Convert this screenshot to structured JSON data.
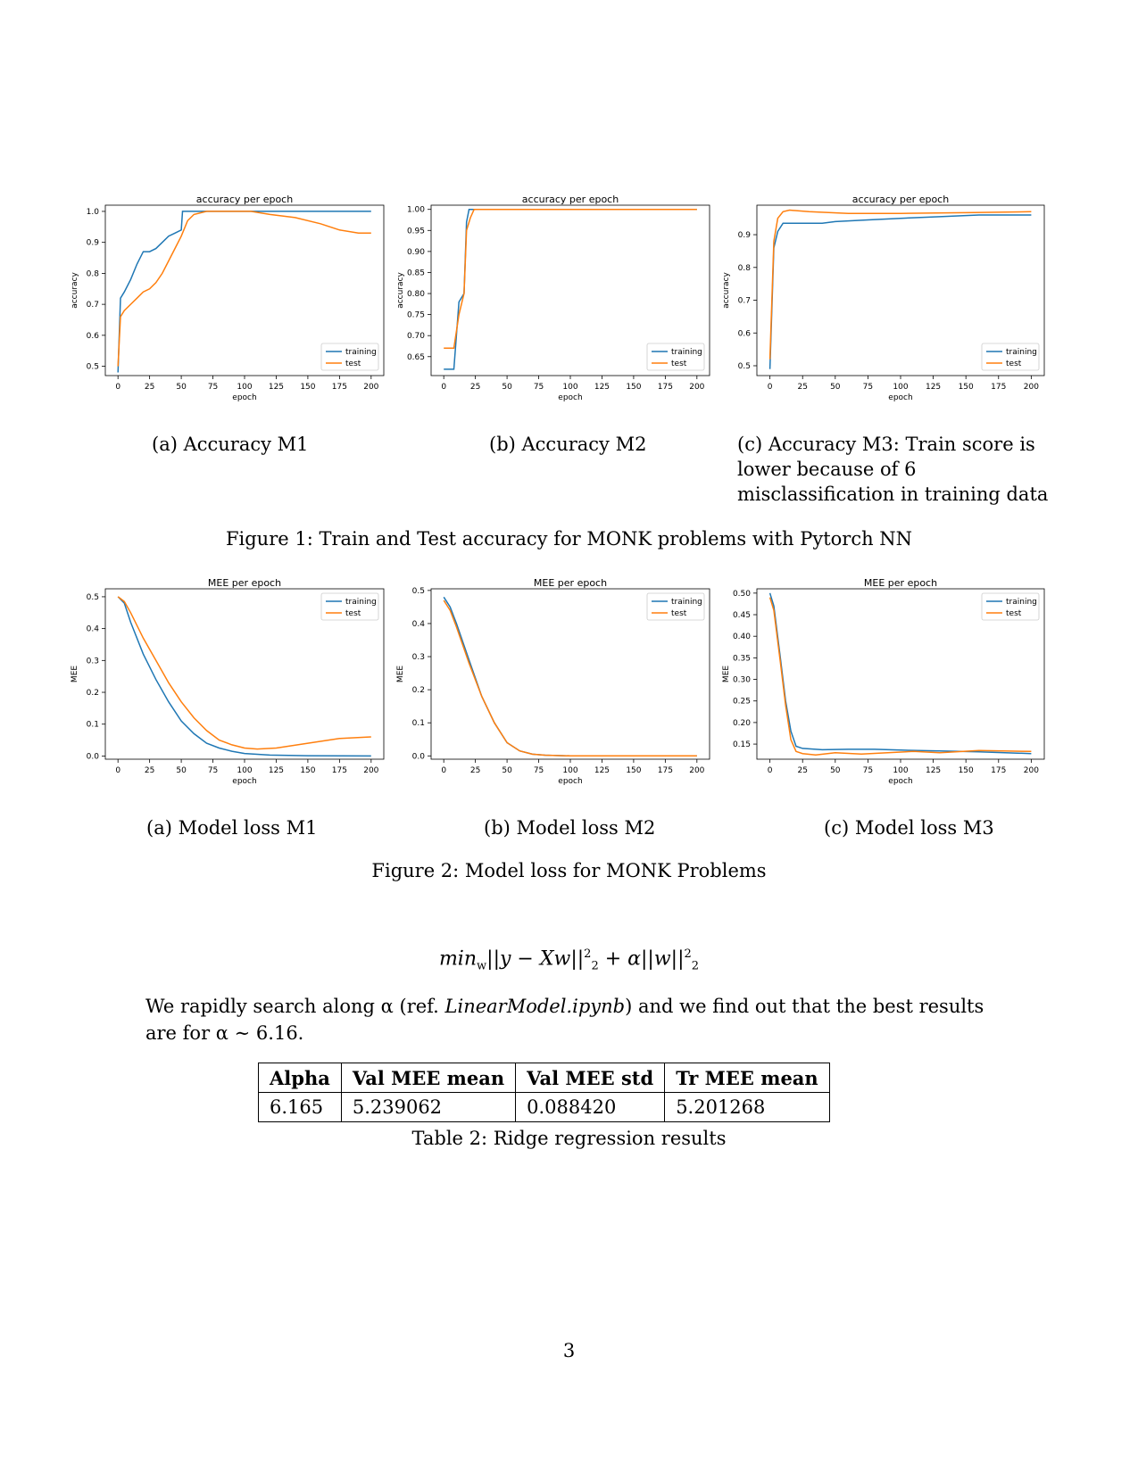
{
  "figure1": {
    "caption": "Figure 1: Train and Test accuracy for MONK problems with Pytorch NN",
    "subfigures": [
      {
        "label": "(a) Accuracy M1"
      },
      {
        "label": "(b) Accuracy M2"
      },
      {
        "label": "(c) Accuracy M3: Train score is lower because of 6 misclassification in training data"
      }
    ]
  },
  "figure2": {
    "caption": "Figure 2: Model loss for MONK Problems",
    "subfigures": [
      {
        "label": "(a) Model loss M1"
      },
      {
        "label": "(b) Model loss M2"
      },
      {
        "label": "(c) Model loss M3"
      }
    ]
  },
  "formula": {
    "text": "min",
    "sub_w": "w",
    "mid": "||y − Xw||",
    "sq": "2",
    "plus": " + α||w||"
  },
  "paragraph": {
    "part1": "We rapidly search along α (ref. ",
    "ref": "LinearModel.ipynb",
    "part2": ") and we find out that the best results are for α ∼ 6.16."
  },
  "table": {
    "headers": [
      "Alpha",
      "Val MEE mean",
      "Val MEE std",
      "Tr MEE mean"
    ],
    "row": [
      "6.165",
      "5.239062",
      "0.088420",
      "5.201268"
    ],
    "caption": "Table 2: Ridge regression results"
  },
  "page_number": "3",
  "colors": {
    "training": "#1f77b4",
    "test": "#ff7f0e"
  },
  "chart_data": [
    {
      "type": "line",
      "title": "accuracy per epoch",
      "xlabel": "epoch",
      "ylabel": "accuracy",
      "xlim": [
        -10,
        210
      ],
      "ylim": [
        0.47,
        1.02
      ],
      "xticks": [
        0,
        25,
        50,
        75,
        100,
        125,
        150,
        175,
        200
      ],
      "yticks": [
        0.5,
        0.6,
        0.7,
        0.8,
        0.9,
        1.0
      ],
      "ytick_labels": [
        "0.5",
        "0.6",
        "0.7",
        "0.8",
        "0.9",
        "1.0"
      ],
      "legend": "lower-right",
      "series": [
        {
          "name": "training",
          "points": [
            [
              0,
              0.48
            ],
            [
              2,
              0.72
            ],
            [
              5,
              0.74
            ],
            [
              10,
              0.78
            ],
            [
              15,
              0.83
            ],
            [
              20,
              0.87
            ],
            [
              25,
              0.87
            ],
            [
              30,
              0.88
            ],
            [
              35,
              0.9
            ],
            [
              40,
              0.92
            ],
            [
              45,
              0.93
            ],
            [
              50,
              0.94
            ],
            [
              51,
              1.0
            ],
            [
              200,
              1.0
            ]
          ]
        },
        {
          "name": "test",
          "points": [
            [
              0,
              0.5
            ],
            [
              2,
              0.66
            ],
            [
              5,
              0.68
            ],
            [
              10,
              0.7
            ],
            [
              15,
              0.72
            ],
            [
              20,
              0.74
            ],
            [
              25,
              0.75
            ],
            [
              30,
              0.77
            ],
            [
              35,
              0.8
            ],
            [
              40,
              0.84
            ],
            [
              45,
              0.88
            ],
            [
              50,
              0.92
            ],
            [
              55,
              0.97
            ],
            [
              60,
              0.99
            ],
            [
              70,
              1.0
            ],
            [
              105,
              1.0
            ],
            [
              120,
              0.99
            ],
            [
              140,
              0.98
            ],
            [
              160,
              0.96
            ],
            [
              175,
              0.94
            ],
            [
              190,
              0.93
            ],
            [
              200,
              0.93
            ]
          ]
        }
      ]
    },
    {
      "type": "line",
      "title": "accuracy per epoch",
      "xlabel": "epoch",
      "ylabel": "accuracy",
      "xlim": [
        -10,
        210
      ],
      "ylim": [
        0.605,
        1.01
      ],
      "xticks": [
        0,
        25,
        50,
        75,
        100,
        125,
        150,
        175,
        200
      ],
      "yticks": [
        0.65,
        0.7,
        0.75,
        0.8,
        0.85,
        0.9,
        0.95,
        1.0
      ],
      "ytick_labels": [
        "0.65",
        "0.70",
        "0.75",
        "0.80",
        "0.85",
        "0.90",
        "0.95",
        "1.00"
      ],
      "legend": "lower-right",
      "series": [
        {
          "name": "training",
          "points": [
            [
              0,
              0.62
            ],
            [
              8,
              0.62
            ],
            [
              12,
              0.78
            ],
            [
              16,
              0.8
            ],
            [
              18,
              0.97
            ],
            [
              20,
              1.0
            ],
            [
              200,
              1.0
            ]
          ]
        },
        {
          "name": "test",
          "points": [
            [
              0,
              0.67
            ],
            [
              8,
              0.67
            ],
            [
              12,
              0.75
            ],
            [
              16,
              0.8
            ],
            [
              18,
              0.95
            ],
            [
              21,
              0.98
            ],
            [
              24,
              1.0
            ],
            [
              200,
              1.0
            ]
          ]
        }
      ]
    },
    {
      "type": "line",
      "title": "accuracy per epoch",
      "xlabel": "epoch",
      "ylabel": "accuracy",
      "xlim": [
        -10,
        210
      ],
      "ylim": [
        0.47,
        0.99
      ],
      "xticks": [
        0,
        25,
        50,
        75,
        100,
        125,
        150,
        175,
        200
      ],
      "yticks": [
        0.5,
        0.6,
        0.7,
        0.8,
        0.9
      ],
      "ytick_labels": [
        "0.5",
        "0.6",
        "0.7",
        "0.8",
        "0.9"
      ],
      "legend": "lower-right",
      "series": [
        {
          "name": "training",
          "points": [
            [
              0,
              0.49
            ],
            [
              3,
              0.86
            ],
            [
              6,
              0.91
            ],
            [
              10,
              0.935
            ],
            [
              15,
              0.935
            ],
            [
              40,
              0.935
            ],
            [
              50,
              0.94
            ],
            [
              75,
              0.945
            ],
            [
              100,
              0.95
            ],
            [
              130,
              0.955
            ],
            [
              160,
              0.96
            ],
            [
              200,
              0.96
            ]
          ]
        },
        {
          "name": "test",
          "points": [
            [
              0,
              0.52
            ],
            [
              3,
              0.88
            ],
            [
              6,
              0.95
            ],
            [
              10,
              0.97
            ],
            [
              15,
              0.975
            ],
            [
              30,
              0.97
            ],
            [
              60,
              0.965
            ],
            [
              100,
              0.965
            ],
            [
              150,
              0.967
            ],
            [
              200,
              0.97
            ]
          ]
        }
      ]
    },
    {
      "type": "line",
      "title": "MEE per epoch",
      "xlabel": "epoch",
      "ylabel": "MEE",
      "xlim": [
        -10,
        210
      ],
      "ylim": [
        -0.01,
        0.525
      ],
      "xticks": [
        0,
        25,
        50,
        75,
        100,
        125,
        150,
        175,
        200
      ],
      "yticks": [
        0.0,
        0.1,
        0.2,
        0.3,
        0.4,
        0.5
      ],
      "ytick_labels": [
        "0.0",
        "0.1",
        "0.2",
        "0.3",
        "0.4",
        "0.5"
      ],
      "legend": "upper-right",
      "series": [
        {
          "name": "training",
          "points": [
            [
              0,
              0.5
            ],
            [
              5,
              0.48
            ],
            [
              10,
              0.42
            ],
            [
              20,
              0.32
            ],
            [
              30,
              0.24
            ],
            [
              40,
              0.17
            ],
            [
              50,
              0.11
            ],
            [
              60,
              0.07
            ],
            [
              70,
              0.04
            ],
            [
              80,
              0.025
            ],
            [
              90,
              0.015
            ],
            [
              100,
              0.008
            ],
            [
              120,
              0.003
            ],
            [
              150,
              0.001
            ],
            [
              200,
              0.0
            ]
          ]
        },
        {
          "name": "test",
          "points": [
            [
              0,
              0.5
            ],
            [
              5,
              0.485
            ],
            [
              10,
              0.45
            ],
            [
              20,
              0.37
            ],
            [
              30,
              0.3
            ],
            [
              40,
              0.23
            ],
            [
              50,
              0.17
            ],
            [
              60,
              0.12
            ],
            [
              70,
              0.08
            ],
            [
              80,
              0.05
            ],
            [
              90,
              0.035
            ],
            [
              100,
              0.025
            ],
            [
              110,
              0.022
            ],
            [
              125,
              0.025
            ],
            [
              150,
              0.04
            ],
            [
              175,
              0.055
            ],
            [
              200,
              0.06
            ]
          ]
        }
      ]
    },
    {
      "type": "line",
      "title": "MEE per epoch",
      "xlabel": "epoch",
      "ylabel": "MEE",
      "xlim": [
        -10,
        210
      ],
      "ylim": [
        -0.01,
        0.505
      ],
      "xticks": [
        0,
        25,
        50,
        75,
        100,
        125,
        150,
        175,
        200
      ],
      "yticks": [
        0.0,
        0.1,
        0.2,
        0.3,
        0.4,
        0.5
      ],
      "ytick_labels": [
        "0.0",
        "0.1",
        "0.2",
        "0.3",
        "0.4",
        "0.5"
      ],
      "legend": "upper-right",
      "series": [
        {
          "name": "training",
          "points": [
            [
              0,
              0.48
            ],
            [
              5,
              0.45
            ],
            [
              10,
              0.4
            ],
            [
              20,
              0.29
            ],
            [
              30,
              0.18
            ],
            [
              40,
              0.1
            ],
            [
              50,
              0.04
            ],
            [
              60,
              0.015
            ],
            [
              70,
              0.005
            ],
            [
              80,
              0.002
            ],
            [
              100,
              0.0
            ],
            [
              200,
              0.0
            ]
          ]
        },
        {
          "name": "test",
          "points": [
            [
              0,
              0.47
            ],
            [
              5,
              0.44
            ],
            [
              10,
              0.39
            ],
            [
              20,
              0.28
            ],
            [
              30,
              0.18
            ],
            [
              40,
              0.1
            ],
            [
              50,
              0.04
            ],
            [
              60,
              0.015
            ],
            [
              70,
              0.005
            ],
            [
              80,
              0.002
            ],
            [
              100,
              0.0
            ],
            [
              200,
              0.0
            ]
          ]
        }
      ]
    },
    {
      "type": "line",
      "title": "MEE per epoch",
      "xlabel": "epoch",
      "ylabel": "MEE",
      "xlim": [
        -10,
        210
      ],
      "ylim": [
        0.115,
        0.51
      ],
      "xticks": [
        0,
        25,
        50,
        75,
        100,
        125,
        150,
        175,
        200
      ],
      "yticks": [
        0.15,
        0.2,
        0.25,
        0.3,
        0.35,
        0.4,
        0.45,
        0.5
      ],
      "ytick_labels": [
        "0.15",
        "0.20",
        "0.25",
        "0.30",
        "0.35",
        "0.40",
        "0.45",
        "0.50"
      ],
      "legend": "upper-right",
      "series": [
        {
          "name": "training",
          "points": [
            [
              0,
              0.5
            ],
            [
              3,
              0.47
            ],
            [
              8,
              0.35
            ],
            [
              12,
              0.25
            ],
            [
              16,
              0.18
            ],
            [
              20,
              0.145
            ],
            [
              25,
              0.14
            ],
            [
              40,
              0.137
            ],
            [
              60,
              0.138
            ],
            [
              80,
              0.138
            ],
            [
              100,
              0.136
            ],
            [
              130,
              0.134
            ],
            [
              160,
              0.132
            ],
            [
              200,
              0.128
            ]
          ]
        },
        {
          "name": "test",
          "points": [
            [
              0,
              0.49
            ],
            [
              3,
              0.46
            ],
            [
              8,
              0.34
            ],
            [
              12,
              0.24
            ],
            [
              16,
              0.16
            ],
            [
              20,
              0.133
            ],
            [
              25,
              0.128
            ],
            [
              35,
              0.125
            ],
            [
              50,
              0.13
            ],
            [
              70,
              0.127
            ],
            [
              90,
              0.13
            ],
            [
              110,
              0.133
            ],
            [
              130,
              0.13
            ],
            [
              160,
              0.135
            ],
            [
              200,
              0.133
            ]
          ]
        }
      ]
    }
  ]
}
